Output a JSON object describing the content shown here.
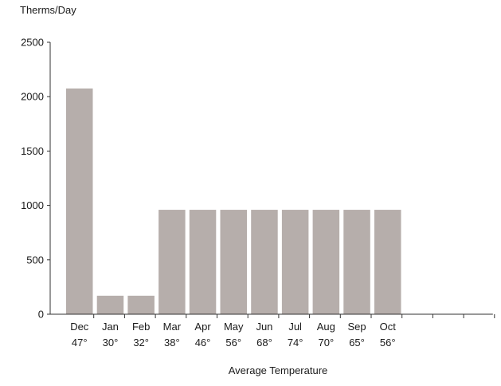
{
  "chart_data": {
    "type": "bar",
    "ylabel": "Therms/Day",
    "xlabel": "Average Temperature",
    "ylim": [
      0,
      2500
    ],
    "yticks": [
      0,
      500,
      1000,
      1500,
      2000,
      2500
    ],
    "categories": [
      "Dec",
      "Jan",
      "Feb",
      "Mar",
      "Apr",
      "May",
      "Jun",
      "Jul",
      "Aug",
      "Sep",
      "Oct"
    ],
    "temperatures": [
      "47°",
      "30°",
      "32°",
      "38°",
      "46°",
      "56°",
      "68°",
      "74°",
      "70°",
      "65°",
      "56°"
    ],
    "values": [
      2075,
      170,
      170,
      960,
      960,
      960,
      960,
      960,
      960,
      960,
      960
    ],
    "bar_color": "#b6aeab",
    "grid": false,
    "legend": "none"
  }
}
